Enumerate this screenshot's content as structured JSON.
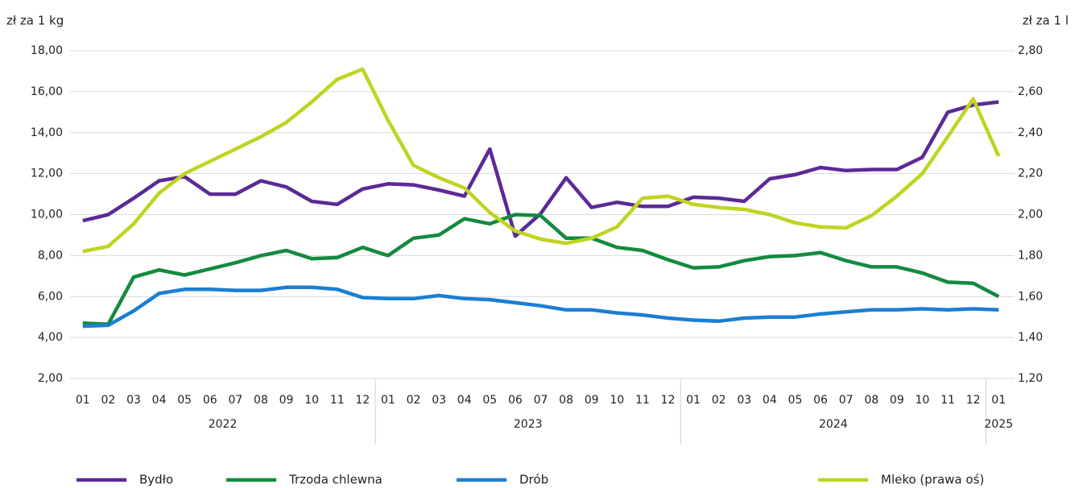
{
  "chart_data": {
    "type": "line",
    "y_label": "zł za 1 kg",
    "y2_label": "zł za 1 l",
    "categories": [
      "01",
      "02",
      "03",
      "04",
      "05",
      "06",
      "07",
      "08",
      "09",
      "10",
      "11",
      "12",
      "01",
      "02",
      "03",
      "04",
      "05",
      "06",
      "07",
      "08",
      "09",
      "10",
      "11",
      "12",
      "01",
      "02",
      "03",
      "04",
      "05",
      "06",
      "07",
      "08",
      "09",
      "10",
      "11",
      "12",
      "01"
    ],
    "category_groups": [
      "2022",
      "2023",
      "2024",
      "2025"
    ],
    "ylim": [
      2,
      18
    ],
    "yticks": [
      {
        "value": 2,
        "label": "2,00"
      },
      {
        "value": 4,
        "label": "4,00"
      },
      {
        "value": 6,
        "label": "6,00"
      },
      {
        "value": 8,
        "label": "8,00"
      },
      {
        "value": 10,
        "label": "10,00"
      },
      {
        "value": 12,
        "label": "12,00"
      },
      {
        "value": 14,
        "label": "14,00"
      },
      {
        "value": 16,
        "label": "16,00"
      },
      {
        "value": 18,
        "label": "18,00"
      }
    ],
    "y2lim": [
      1.2,
      2.8
    ],
    "y2ticks": [
      {
        "value": 1.2,
        "label": "1,20"
      },
      {
        "value": 1.4,
        "label": "1,40"
      },
      {
        "value": 1.6,
        "label": "1,60"
      },
      {
        "value": 1.8,
        "label": "1,80"
      },
      {
        "value": 2.0,
        "label": "2,00"
      },
      {
        "value": 2.2,
        "label": "2,20"
      },
      {
        "value": 2.4,
        "label": "2,40"
      },
      {
        "value": 2.6,
        "label": "2,60"
      },
      {
        "value": 2.8,
        "label": "2,80"
      }
    ],
    "grid": true,
    "legend": "bottom",
    "series": [
      {
        "name": "Bydło",
        "color": "#5b2a96",
        "values": [
          9.7,
          10.0,
          10.8,
          11.65,
          11.85,
          11.0,
          11.0,
          11.65,
          11.35,
          10.65,
          10.5,
          11.25,
          11.5,
          11.45,
          11.2,
          10.9,
          13.2,
          8.95,
          10.05,
          11.8,
          10.35,
          10.6,
          10.4,
          10.4,
          10.85,
          10.8,
          10.65,
          11.75,
          11.95,
          12.3,
          12.15,
          12.2,
          12.2,
          12.8,
          15.0,
          15.35,
          15.5
        ]
      },
      {
        "name": "Trzoda chlewna",
        "color": "#148a3e",
        "values": [
          4.7,
          4.65,
          6.95,
          7.3,
          7.05,
          7.35,
          7.65,
          8.0,
          8.25,
          7.85,
          7.9,
          8.4,
          8.0,
          8.85,
          9.0,
          9.8,
          9.55,
          10.0,
          9.95,
          8.85,
          8.85,
          8.4,
          8.25,
          7.8,
          7.4,
          7.45,
          7.75,
          7.95,
          8.0,
          8.15,
          7.75,
          7.45,
          7.45,
          7.15,
          6.7,
          6.65,
          6.0
        ]
      },
      {
        "name": "Drób",
        "color": "#1b7fd1",
        "values": [
          4.55,
          4.6,
          5.3,
          6.15,
          6.35,
          6.35,
          6.3,
          6.3,
          6.45,
          6.45,
          6.35,
          5.95,
          5.9,
          5.9,
          6.05,
          5.9,
          5.85,
          5.7,
          5.55,
          5.35,
          5.35,
          5.2,
          5.1,
          4.95,
          4.85,
          4.8,
          4.95,
          5.0,
          5.0,
          5.15,
          5.25,
          5.35,
          5.35,
          5.4,
          5.35,
          5.4,
          5.35
        ]
      },
      {
        "name": "Mleko (prawa oś)",
        "color": "#bfd422",
        "axis": "y2",
        "values": [
          1.82,
          1.845,
          1.955,
          2.105,
          2.2,
          2.26,
          2.32,
          2.38,
          2.45,
          2.55,
          2.66,
          2.71,
          2.46,
          2.24,
          2.18,
          2.13,
          2.01,
          1.92,
          1.88,
          1.86,
          1.885,
          1.94,
          2.08,
          2.09,
          2.05,
          2.035,
          2.025,
          2.0,
          1.96,
          1.94,
          1.935,
          1.995,
          2.09,
          2.2,
          2.38,
          2.565,
          2.285
        ]
      }
    ]
  }
}
